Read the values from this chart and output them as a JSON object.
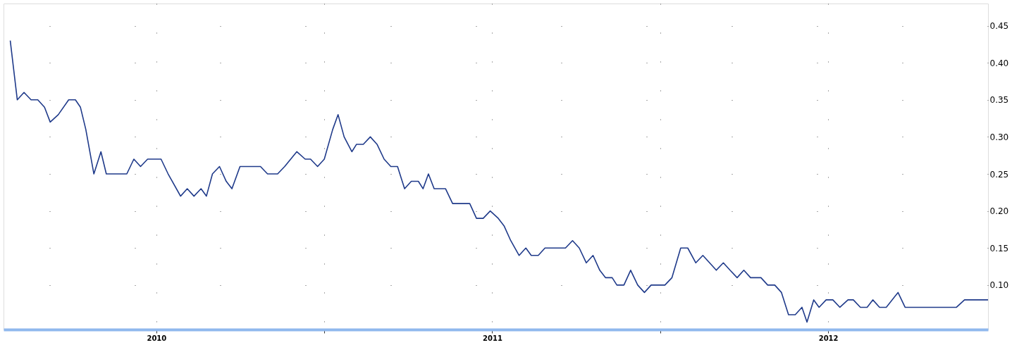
{
  "chart_data": {
    "type": "line",
    "x": [
      2010.065,
      2010.086,
      2010.106,
      2010.127,
      2010.147,
      2010.167,
      2010.184,
      2010.208,
      2010.239,
      2010.259,
      2010.274,
      2010.29,
      2010.314,
      2010.335,
      2010.351,
      2010.412,
      2010.433,
      2010.453,
      2010.474,
      2010.514,
      2010.535,
      2010.572,
      2010.592,
      2010.612,
      2010.633,
      2010.649,
      2010.667,
      2010.688,
      2010.708,
      2010.725,
      2010.749,
      2010.81,
      2010.831,
      2010.861,
      2010.882,
      2010.918,
      2010.943,
      2010.959,
      2010.98,
      2011.0,
      2011.025,
      2011.041,
      2011.059,
      2011.082,
      2011.096,
      2011.116,
      2011.137,
      2011.157,
      2011.178,
      2011.198,
      2011.218,
      2011.239,
      2011.259,
      2011.28,
      2011.294,
      2011.31,
      2011.327,
      2011.361,
      2011.382,
      2011.433,
      2011.453,
      2011.473,
      2011.494,
      2011.518,
      2011.535,
      2011.555,
      2011.58,
      2011.6,
      2011.616,
      2011.637,
      2011.657,
      2011.718,
      2011.739,
      2011.759,
      2011.78,
      2011.8,
      2011.82,
      2011.837,
      2011.857,
      2011.871,
      2011.892,
      2011.912,
      2011.933,
      2011.953,
      2011.973,
      2012.014,
      2012.035,
      2012.061,
      2012.082,
      2012.106,
      2012.127,
      2012.147,
      2012.167,
      2012.188,
      2012.208,
      2012.229,
      2012.249,
      2012.269,
      2012.3,
      2012.32,
      2012.341,
      2012.361,
      2012.382,
      2012.402,
      2012.422,
      2012.437,
      2012.457,
      2012.473,
      2012.494,
      2012.514,
      2012.535,
      2012.559,
      2012.575,
      2012.596,
      2012.616,
      2012.633,
      2012.653,
      2012.673,
      2012.708,
      2012.729,
      2012.882,
      2012.906,
      2012.976
    ],
    "series": [
      {
        "color": "#1f3a8a",
        "values": [
          0.43,
          0.35,
          0.36,
          0.35,
          0.35,
          0.34,
          0.32,
          0.33,
          0.35,
          0.35,
          0.34,
          0.31,
          0.25,
          0.28,
          0.25,
          0.25,
          0.27,
          0.26,
          0.27,
          0.27,
          0.25,
          0.22,
          0.23,
          0.22,
          0.23,
          0.22,
          0.25,
          0.26,
          0.24,
          0.23,
          0.26,
          0.26,
          0.25,
          0.25,
          0.26,
          0.28,
          0.27,
          0.27,
          0.26,
          0.27,
          0.31,
          0.33,
          0.3,
          0.28,
          0.29,
          0.29,
          0.3,
          0.29,
          0.27,
          0.26,
          0.26,
          0.23,
          0.24,
          0.24,
          0.23,
          0.25,
          0.23,
          0.23,
          0.21,
          0.21,
          0.19,
          0.19,
          0.2,
          0.19,
          0.18,
          0.16,
          0.14,
          0.15,
          0.14,
          0.14,
          0.15,
          0.15,
          0.16,
          0.15,
          0.13,
          0.14,
          0.12,
          0.11,
          0.11,
          0.1,
          0.1,
          0.12,
          0.1,
          0.09,
          0.1,
          0.1,
          0.11,
          0.15,
          0.15,
          0.13,
          0.14,
          0.13,
          0.12,
          0.13,
          0.12,
          0.11,
          0.12,
          0.11,
          0.11,
          0.1,
          0.1,
          0.09,
          0.06,
          0.06,
          0.07,
          0.05,
          0.08,
          0.07,
          0.08,
          0.08,
          0.07,
          0.08,
          0.08,
          0.07,
          0.07,
          0.08,
          0.07,
          0.07,
          0.09,
          0.07,
          0.07,
          0.08,
          0.08
        ]
      }
    ],
    "xlim": [
      2010.045,
      2012.976
    ],
    "xticks": [
      {
        "value": 2010.5,
        "label": "2010"
      },
      {
        "value": 2011,
        "label": null
      },
      {
        "value": 2011.5,
        "label": "2011"
      },
      {
        "value": 2012,
        "label": null
      },
      {
        "value": 2012.5,
        "label": "2012"
      }
    ],
    "ylim": [
      0.04,
      0.48
    ],
    "yticks": [
      {
        "value": 0.1,
        "label": "0.10"
      },
      0.15,
      {
        "value": 0.2,
        "label": "0.20"
      },
      0.25,
      {
        "value": 0.3,
        "label": "0.30"
      },
      0.35,
      {
        "value": 0.4,
        "label": "0.40"
      },
      0.45
    ],
    "grid": true,
    "line_style": "solid",
    "legend": false
  }
}
